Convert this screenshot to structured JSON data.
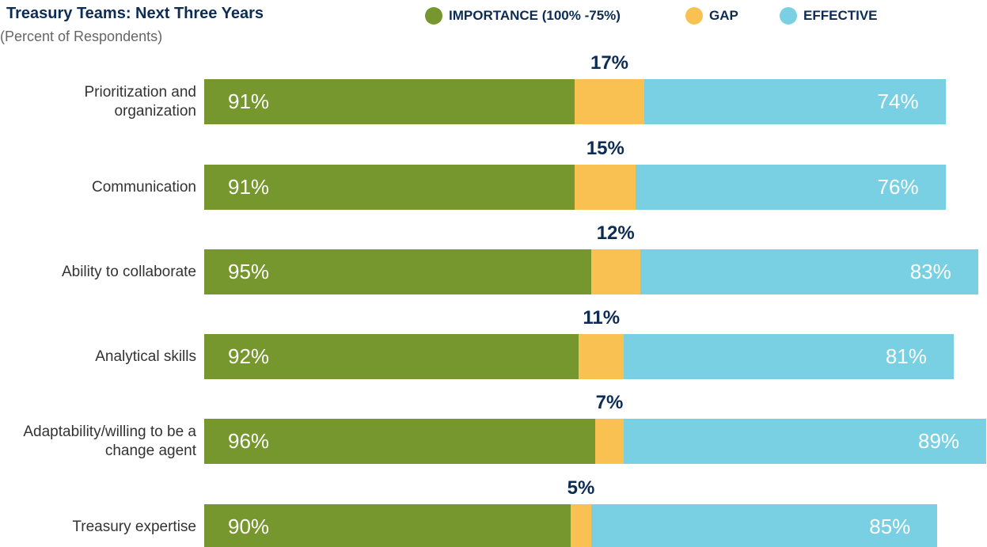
{
  "chart_data": {
    "type": "stacked-bar-horizontal",
    "title": "Treasury Teams: Next Three Years",
    "subtitle": "(Percent of Respondents)",
    "categories": [
      "Prioritization and organization",
      "Communication",
      "Ability to collaborate",
      "Analytical skills",
      "Adaptability/willing to be a change agent",
      "Treasury expertise"
    ],
    "series": [
      {
        "name": "IMPORTANCE (100% -75%)",
        "color": "#76962e",
        "values": [
          91,
          91,
          95,
          92,
          96,
          90
        ],
        "value_labels": [
          "91%",
          "91%",
          "95%",
          "92%",
          "96%",
          "90%"
        ]
      },
      {
        "name": "GAP",
        "color": "#f9c152",
        "values": [
          17,
          15,
          12,
          11,
          7,
          5
        ],
        "value_labels": [
          "17%",
          "15%",
          "12%",
          "11%",
          "7%",
          "5%"
        ]
      },
      {
        "name": "EFFECTIVE",
        "color": "#79d0e3",
        "values": [
          74,
          76,
          83,
          81,
          89,
          85
        ],
        "value_labels": [
          "74%",
          "76%",
          "83%",
          "81%",
          "89%",
          "85%"
        ]
      }
    ]
  }
}
